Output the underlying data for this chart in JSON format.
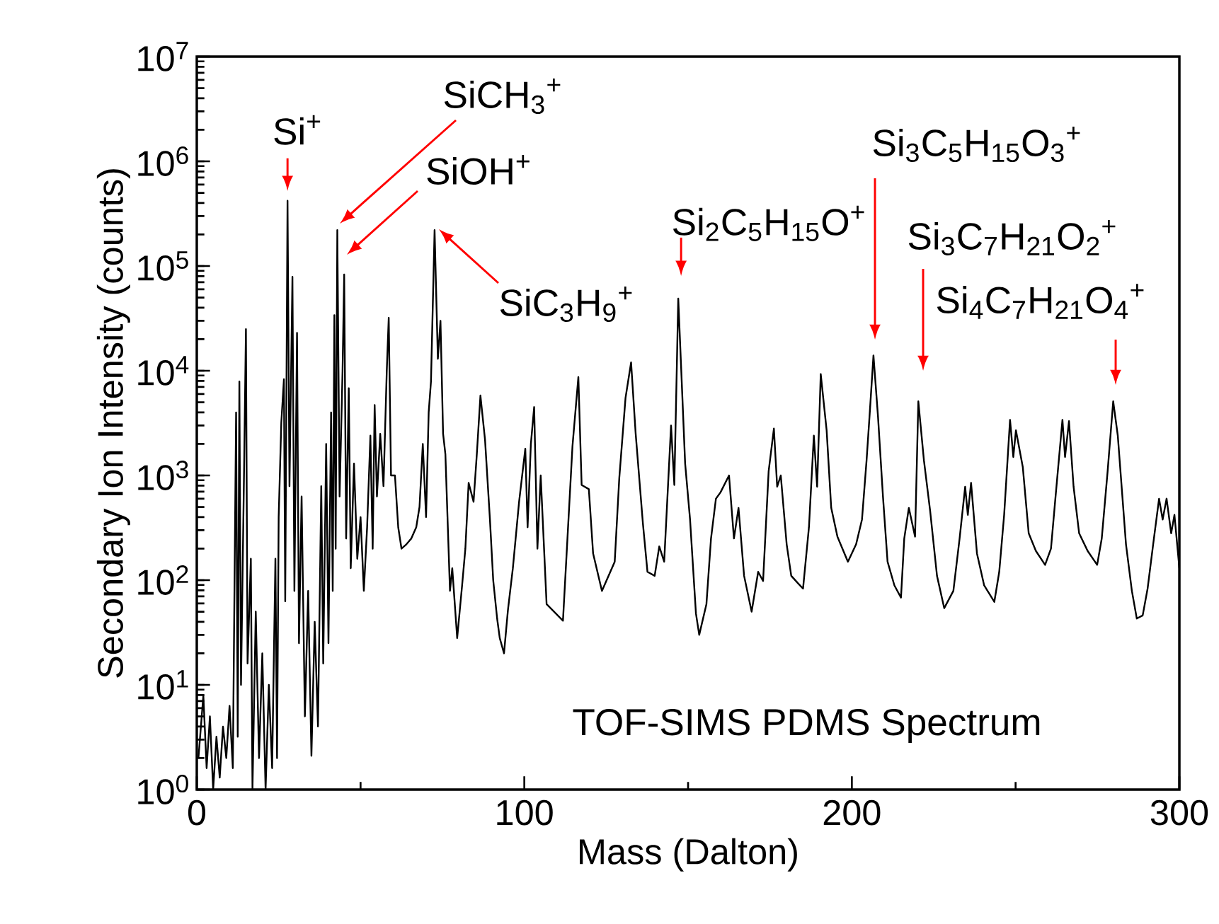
{
  "chart_data": {
    "type": "line",
    "xlabel": "Mass (Dalton)",
    "ylabel": "Secondary Ion Intensity (counts)",
    "log": "y",
    "xlim": [
      0,
      300
    ],
    "ylim": [
      1,
      10000000
    ],
    "xticks": [
      0,
      100,
      200,
      300
    ],
    "yticks": [
      {
        "value": 1,
        "label": "10$^{0}$"
      },
      {
        "value": 10,
        "label": "10$^{1}$"
      },
      {
        "value": 100,
        "label": "10$^{2}$"
      },
      {
        "value": 1000,
        "label": "10$^{3}$"
      },
      {
        "value": 10000,
        "label": "10$^{4}$"
      },
      {
        "value": 100000,
        "label": "10$^{5}$"
      },
      {
        "value": 1000000,
        "label": "10$^{6}$"
      },
      {
        "value": 10000000,
        "label": "10$^{7}$"
      }
    ],
    "x": [
      0.5,
      2,
      3,
      4,
      5,
      6,
      7,
      8,
      9,
      10,
      11,
      12,
      12.5,
      13,
      13.5,
      14.5,
      15,
      15.5,
      16.5,
      17,
      18,
      19,
      20,
      21,
      22,
      23,
      24,
      24.5,
      25,
      25.8,
      26.6,
      27,
      27.7,
      28.3,
      29.2,
      29.8,
      30.6,
      31.2,
      32,
      33,
      34,
      35,
      36,
      37,
      38,
      38.6,
      39.5,
      40.2,
      41,
      41.5,
      42,
      42.4,
      42.9,
      43.6,
      44.5,
      45,
      45.6,
      46.4,
      47,
      48,
      49,
      50,
      51,
      52,
      53,
      53.7,
      54.3,
      55,
      56,
      57,
      58,
      58.6,
      59.3,
      60.5,
      61.5,
      62.5,
      64,
      65.5,
      67,
      68,
      69,
      70,
      70.8,
      71.5,
      72.6,
      73.6,
      74.4,
      75.2,
      75.9,
      77.3,
      78,
      79.5,
      81,
      82,
      83,
      84.5,
      85.5,
      86.6,
      88,
      89.5,
      90.5,
      91.7,
      92.5,
      93.8,
      95,
      96.5,
      98.4,
      100.3,
      101,
      102,
      103,
      104,
      105,
      106.8,
      111.8,
      114.7,
      116.5,
      117.5,
      119.7,
      121,
      123.7,
      127.6,
      129,
      130.9,
      132.6,
      134,
      136.2,
      137.6,
      139.8,
      141.2,
      142.7,
      144.8,
      145.8,
      147,
      149.1,
      150.6,
      152.4,
      153.4,
      155.6,
      157,
      158.5,
      159.9,
      162.5,
      164,
      165.4,
      167.1,
      169.4,
      171.4,
      172.9,
      174.6,
      176.2,
      177.2,
      178.3,
      180.1,
      181.5,
      183.6,
      185.1,
      186.9,
      188.4,
      189.4,
      190.5,
      192.3,
      193.7,
      195.6,
      198.8,
      201.3,
      203.1,
      204.5,
      205.5,
      206.6,
      208,
      209.5,
      210.9,
      213,
      215,
      216,
      217.4,
      219.3,
      220.3,
      222,
      223.9,
      226,
      228.2,
      231,
      232.9,
      234.6,
      235.4,
      236.4,
      238.2,
      240.4,
      243.5,
      245,
      246.5,
      248.3,
      249.3,
      250.1,
      252.2,
      254,
      256.2,
      259,
      260.8,
      262.2,
      264.3,
      265.1,
      266.3,
      267.7,
      269.4,
      272,
      274.9,
      276.3,
      278.1,
      279.8,
      281.2,
      283.7,
      285.5,
      287,
      288.8,
      290.3,
      292,
      293.8,
      294.9,
      296.1,
      297.5,
      298.5,
      300
    ],
    "series": [
      {
        "color": "#000000",
        "values": [
          2,
          7.9,
          1.6,
          5,
          1,
          3.2,
          1.3,
          4,
          2,
          6.3,
          1.6,
          4000,
          3.2,
          7900,
          10,
          1600,
          25000,
          16,
          160,
          1,
          50,
          2,
          20,
          1,
          10,
          1.6,
          160,
          2,
          400,
          3200,
          8300,
          63,
          420000,
          790,
          79000,
          79,
          23000,
          25,
          630,
          5,
          79,
          2.1,
          40,
          4,
          790,
          16,
          2000,
          25,
          4000,
          79,
          34000,
          200,
          220000,
          630,
          10000,
          83000,
          250,
          6800,
          130,
          1300,
          160,
          400,
          79,
          320,
          2400,
          200,
          4700,
          630,
          2500,
          790,
          10000,
          32000,
          1000,
          1000,
          320,
          200,
          220,
          250,
          320,
          500,
          2000,
          400,
          4000,
          7900,
          220000,
          13000,
          30000,
          2500,
          1600,
          79,
          130,
          28,
          89,
          200,
          850,
          560,
          1600,
          5800,
          2200,
          380,
          100,
          43,
          28,
          20,
          52,
          130,
          560,
          1800,
          320,
          2000,
          4500,
          200,
          1000,
          59,
          41,
          1900,
          8700,
          810,
          740,
          180,
          79,
          150,
          950,
          5500,
          12000,
          2500,
          350,
          120,
          110,
          210,
          150,
          3000,
          810,
          49000,
          1300,
          380,
          48,
          30,
          59,
          250,
          600,
          690,
          1000,
          250,
          490,
          110,
          50,
          120,
          98,
          1100,
          2800,
          780,
          1000,
          220,
          110,
          93,
          83,
          320,
          2400,
          780,
          9300,
          2700,
          490,
          260,
          150,
          220,
          380,
          1400,
          4100,
          14000,
          3600,
          630,
          150,
          89,
          68,
          250,
          490,
          260,
          5100,
          1400,
          460,
          110,
          54,
          79,
          250,
          780,
          420,
          850,
          180,
          89,
          62,
          120,
          420,
          3400,
          1500,
          2700,
          1200,
          280,
          190,
          140,
          200,
          630,
          3400,
          1500,
          3300,
          780,
          280,
          190,
          140,
          250,
          1100,
          5100,
          2400,
          220,
          79,
          43,
          46,
          83,
          220,
          600,
          380,
          600,
          280,
          420,
          130
        ]
      }
    ],
    "annotations": [
      {
        "text": "Si$^{+}$",
        "x": 27.7,
        "y": 420000
      },
      "SiCH$_{3}$$^{+}$",
      "SiOH$^{+}$",
      "SiC$_{3}$H$_{9}$$^{+}$",
      {
        "text": "Si$_{2}$C$_{5}$H$_{15}$O$^{+}$",
        "x": 147,
        "y": 49000
      },
      "Si$_{3}$C$_{5}$H$_{15}$O$_{3}$$^{+}$",
      "Si$_{3}$C$_{7}$H$_{21}$O$_{2}$$^{+}$",
      "Si$_{4}$C$_{7}$H$_{21}$O$_{4}$$^{+}$",
      "TOF-SIMS PDMS Spectrum"
    ]
  }
}
